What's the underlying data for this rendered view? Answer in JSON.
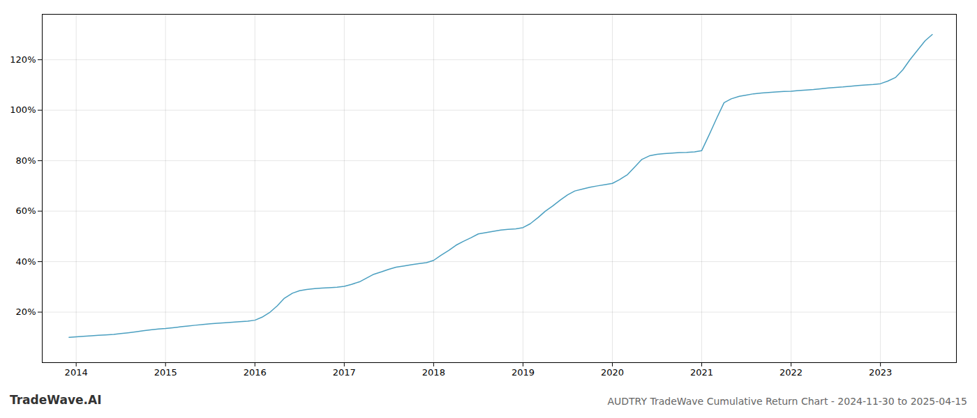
{
  "chart_data": {
    "type": "line",
    "title": "AUDTRY TradeWave Cumulative Return Chart - 2024-11-30 to 2025-04-15",
    "annotations": [
      "TradeWave.AI"
    ],
    "color": "#4a9fc0",
    "grid": true,
    "xlim": [
      2013.62,
      2023.85
    ],
    "xticks": [
      2014,
      2015,
      2016,
      2017,
      2018,
      2019,
      2020,
      2021,
      2022,
      2023
    ],
    "ylim": [
      0,
      138
    ],
    "yticks": [
      {
        "value": 20,
        "label": "20%"
      },
      {
        "value": 40,
        "label": "40%"
      },
      {
        "value": 60,
        "label": "60%"
      },
      {
        "value": 80,
        "label": "80%"
      },
      {
        "value": 100,
        "label": "100%"
      },
      {
        "value": 120,
        "label": "120%"
      }
    ],
    "x": [
      2013.92,
      2014.0,
      2014.08,
      2014.17,
      2014.25,
      2014.33,
      2014.42,
      2014.5,
      2014.58,
      2014.67,
      2014.75,
      2014.83,
      2014.92,
      2015.0,
      2015.08,
      2015.17,
      2015.25,
      2015.33,
      2015.42,
      2015.5,
      2015.58,
      2015.67,
      2015.75,
      2015.83,
      2015.92,
      2016.0,
      2016.08,
      2016.17,
      2016.25,
      2016.33,
      2016.42,
      2016.5,
      2016.58,
      2016.67,
      2016.75,
      2016.83,
      2016.92,
      2017.0,
      2017.08,
      2017.17,
      2017.25,
      2017.33,
      2017.42,
      2017.5,
      2017.58,
      2017.67,
      2017.75,
      2017.83,
      2017.92,
      2018.0,
      2018.08,
      2018.17,
      2018.25,
      2018.33,
      2018.42,
      2018.5,
      2018.58,
      2018.67,
      2018.75,
      2018.83,
      2018.92,
      2019.0,
      2019.08,
      2019.17,
      2019.25,
      2019.33,
      2019.42,
      2019.5,
      2019.58,
      2019.67,
      2019.75,
      2019.83,
      2019.92,
      2020.0,
      2020.08,
      2020.17,
      2020.25,
      2020.33,
      2020.42,
      2020.5,
      2020.58,
      2020.67,
      2020.75,
      2020.83,
      2020.92,
      2021.0,
      2021.08,
      2021.17,
      2021.25,
      2021.33,
      2021.42,
      2021.5,
      2021.58,
      2021.67,
      2021.75,
      2021.83,
      2021.92,
      2022.0,
      2022.08,
      2022.17,
      2022.25,
      2022.33,
      2022.42,
      2022.5,
      2022.58,
      2022.67,
      2022.75,
      2022.83,
      2022.92,
      2023.0,
      2023.08,
      2023.17,
      2023.25,
      2023.33,
      2023.42,
      2023.5,
      2023.58
    ],
    "values": [
      10,
      10.2,
      10.4,
      10.6,
      10.8,
      11.0,
      11.2,
      11.5,
      11.8,
      12.2,
      12.6,
      13.0,
      13.3,
      13.5,
      13.8,
      14.2,
      14.5,
      14.8,
      15.1,
      15.4,
      15.6,
      15.8,
      16.0,
      16.2,
      16.4,
      16.8,
      18.0,
      20.0,
      22.5,
      25.5,
      27.5,
      28.5,
      29.0,
      29.3,
      29.5,
      29.7,
      29.9,
      30.2,
      31.0,
      32.0,
      33.5,
      35.0,
      36.0,
      37.0,
      37.8,
      38.3,
      38.8,
      39.2,
      39.6,
      40.5,
      42.5,
      44.5,
      46.5,
      48.0,
      49.5,
      51.0,
      51.5,
      52.0,
      52.5,
      52.8,
      53.0,
      53.5,
      55.0,
      57.5,
      60.0,
      62.0,
      64.5,
      66.5,
      68.0,
      68.8,
      69.5,
      70.0,
      70.5,
      71.0,
      72.5,
      74.5,
      77.5,
      80.5,
      82.0,
      82.5,
      82.8,
      83.0,
      83.2,
      83.3,
      83.5,
      84.0,
      90.0,
      97.0,
      103.0,
      104.5,
      105.5,
      106.0,
      106.5,
      106.8,
      107.0,
      107.2,
      107.4,
      107.5,
      107.8,
      108.0,
      108.2,
      108.5,
      108.8,
      109.0,
      109.2,
      109.5,
      109.8,
      110.0,
      110.2,
      110.5,
      111.5,
      113.0,
      116.0,
      120.0,
      124.0,
      127.5,
      130.0
    ]
  }
}
